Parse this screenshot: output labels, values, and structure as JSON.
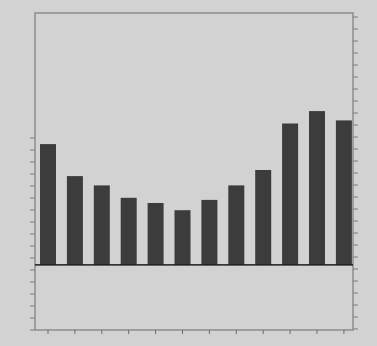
{
  "chart_data": {
    "type": "bar",
    "title": "",
    "xlabel": "",
    "ylabel": "",
    "legend": "none",
    "grid": false,
    "categories": [
      "",
      "",
      "",
      "",
      "",
      "",
      "",
      "",
      "",
      "",
      "",
      ""
    ],
    "values": [
      117,
      86,
      77,
      65,
      60,
      53,
      63,
      77,
      92,
      137,
      149,
      140
    ],
    "ylim": [
      -63,
      244
    ],
    "colors": {
      "background": "#d2d2d2",
      "bar": "#3c3c3c",
      "axis": "#8c8c8c",
      "baseline": "#1e1e1e"
    }
  }
}
